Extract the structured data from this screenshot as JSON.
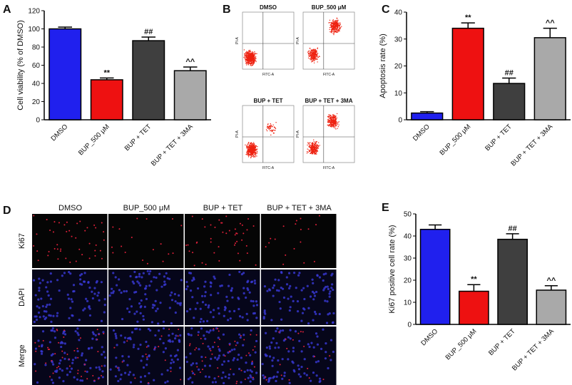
{
  "chart_data": [
    {
      "type": "bar",
      "panel": "A",
      "ylabel": "Cell viability (% of DMSO)",
      "categories": [
        "DMSO",
        "BUP_500 μM",
        "BUP + TET",
        "BUP + TET + 3MA"
      ],
      "values": [
        100,
        44,
        87,
        54
      ],
      "errors": [
        2,
        2,
        4,
        4
      ],
      "value_annotations": [
        null,
        "**",
        "##",
        "^^"
      ],
      "colors": [
        "#2020ee",
        "#ee1111",
        "#3f3f3f",
        "#a9a9a9"
      ],
      "ylim": [
        0,
        120
      ],
      "yticks": [
        0,
        20,
        40,
        60,
        80,
        100,
        120
      ]
    },
    {
      "type": "bar",
      "panel": "C",
      "ylabel": "Apoptosis rate (%)",
      "categories": [
        "DMSO",
        "BUP_500 μM",
        "BUP + TET",
        "BUP + TET + 3MA"
      ],
      "values": [
        2.5,
        34,
        13.5,
        30.5
      ],
      "errors": [
        0.5,
        2,
        2,
        3.5
      ],
      "value_annotations": [
        null,
        "**",
        "##",
        "^^"
      ],
      "colors": [
        "#2020ee",
        "#ee1111",
        "#3f3f3f",
        "#a9a9a9"
      ],
      "ylim": [
        0,
        40
      ],
      "yticks": [
        0,
        10,
        20,
        30,
        40
      ]
    },
    {
      "type": "bar",
      "panel": "E",
      "ylabel": "Ki67 positive cell rate (%)",
      "categories": [
        "DMSO",
        "BUP_500 μM",
        "BUP + TET",
        "BUP + TET + 3MA"
      ],
      "values": [
        43,
        15,
        38.5,
        15.5
      ],
      "errors": [
        2,
        3,
        2.5,
        2
      ],
      "value_annotations": [
        null,
        "**",
        "##",
        "^^"
      ],
      "colors": [
        "#2020ee",
        "#ee1111",
        "#3f3f3f",
        "#a9a9a9"
      ],
      "ylim": [
        0,
        50
      ],
      "yticks": [
        0,
        10,
        20,
        30,
        40,
        50
      ]
    }
  ],
  "flow": {
    "panel": "B",
    "xlabel": "FITC-A",
    "ylabel": "PI-A",
    "plots": [
      "DMSO",
      "BUP_500 μM",
      "BUP + TET",
      "BUP + TET + 3MA"
    ]
  },
  "microscopy": {
    "panel": "D",
    "columns": [
      "DMSO",
      "BUP_500 μM",
      "BUP + TET",
      "BUP + TET + 3MA"
    ],
    "rows": [
      "Ki67",
      "DAPI",
      "Merge"
    ]
  }
}
